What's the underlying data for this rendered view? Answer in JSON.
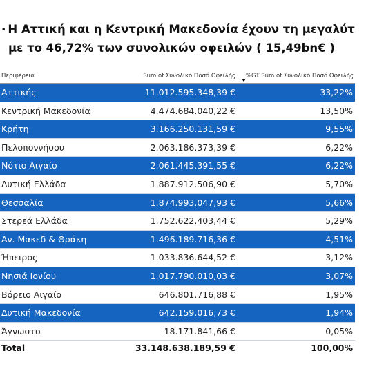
{
  "title": {
    "line1": "Η Αττική και η Κεντρική Μακεδονία  έχουν τη μεγαλύτ",
    "line2": "με το 46,72% των συνολικών οφειλών ( 15,49bn€ )"
  },
  "table": {
    "headers": {
      "region": "Περιφέρεια",
      "sum": "Sum of Συνολικό Ποσό Οφειλής",
      "pct": "%GT Sum of Συνολικό Ποσό Οφειλής"
    },
    "rows": [
      {
        "region": "Αττικής",
        "sum": "11.012.595.348,39 €",
        "pct": "33,22%"
      },
      {
        "region": "Κεντρική Μακεδονία",
        "sum": "4.474.684.040,22 €",
        "pct": "13,50%"
      },
      {
        "region": "Κρήτη",
        "sum": "3.166.250.131,59 €",
        "pct": "9,55%"
      },
      {
        "region": "Πελοποννήσου",
        "sum": "2.063.186.373,39 €",
        "pct": "6,22%"
      },
      {
        "region": "Νότιο Αιγαίο",
        "sum": "2.061.445.391,55 €",
        "pct": "6,22%"
      },
      {
        "region": "Δυτική Ελλάδα",
        "sum": "1.887.912.506,90 €",
        "pct": "5,70%"
      },
      {
        "region": "Θεσσαλία",
        "sum": "1.874.993.047,93 €",
        "pct": "5,66%"
      },
      {
        "region": "Στερεά Ελλάδα",
        "sum": "1.752.622.403,44 €",
        "pct": "5,29%"
      },
      {
        "region": "Αν. Μακεδ & Θράκη",
        "sum": "1.496.189.716,36 €",
        "pct": "4,51%"
      },
      {
        "region": "Ήπειρος",
        "sum": "1.033.836.644,52 €",
        "pct": "3,12%"
      },
      {
        "region": "Νησιά Ιονίου",
        "sum": "1.017.790.010,03 €",
        "pct": "3,07%"
      },
      {
        "region": "Βόρειο Αιγαίο",
        "sum": "646.801.716,88 €",
        "pct": "1,95%"
      },
      {
        "region": "Δυτική Μακεδονία",
        "sum": "642.159.016,73 €",
        "pct": "1,94%"
      },
      {
        "region": "Άγνωστο",
        "sum": "18.171.841,66 €",
        "pct": "0,05%"
      }
    ],
    "total": {
      "label": "Total",
      "sum": "33.148.638.189,59 €",
      "pct": "100,00%"
    }
  },
  "colors": {
    "highlight": "#1565c0"
  }
}
